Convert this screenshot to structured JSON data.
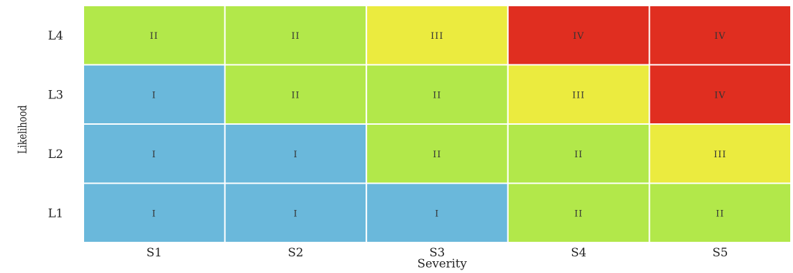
{
  "chart_data": {
    "type": "heatmap",
    "title": "",
    "xlabel": "Severity",
    "ylabel": "Likelihood",
    "x_categories": [
      "S1",
      "S2",
      "S3",
      "S4",
      "S5"
    ],
    "y_categories": [
      "L4",
      "L3",
      "L2",
      "L1"
    ],
    "cells": [
      [
        "II",
        "II",
        "III",
        "IV",
        "IV"
      ],
      [
        "I",
        "II",
        "II",
        "III",
        "IV"
      ],
      [
        "I",
        "I",
        "II",
        "II",
        "III"
      ],
      [
        "I",
        "I",
        "I",
        "II",
        "II"
      ]
    ],
    "level_colors": {
      "I": "#6ab8db",
      "II": "#b2e84a",
      "III": "#ebeb3f",
      "IV": "#e02e20"
    },
    "grid": true,
    "grid_color": "#ffffff"
  }
}
